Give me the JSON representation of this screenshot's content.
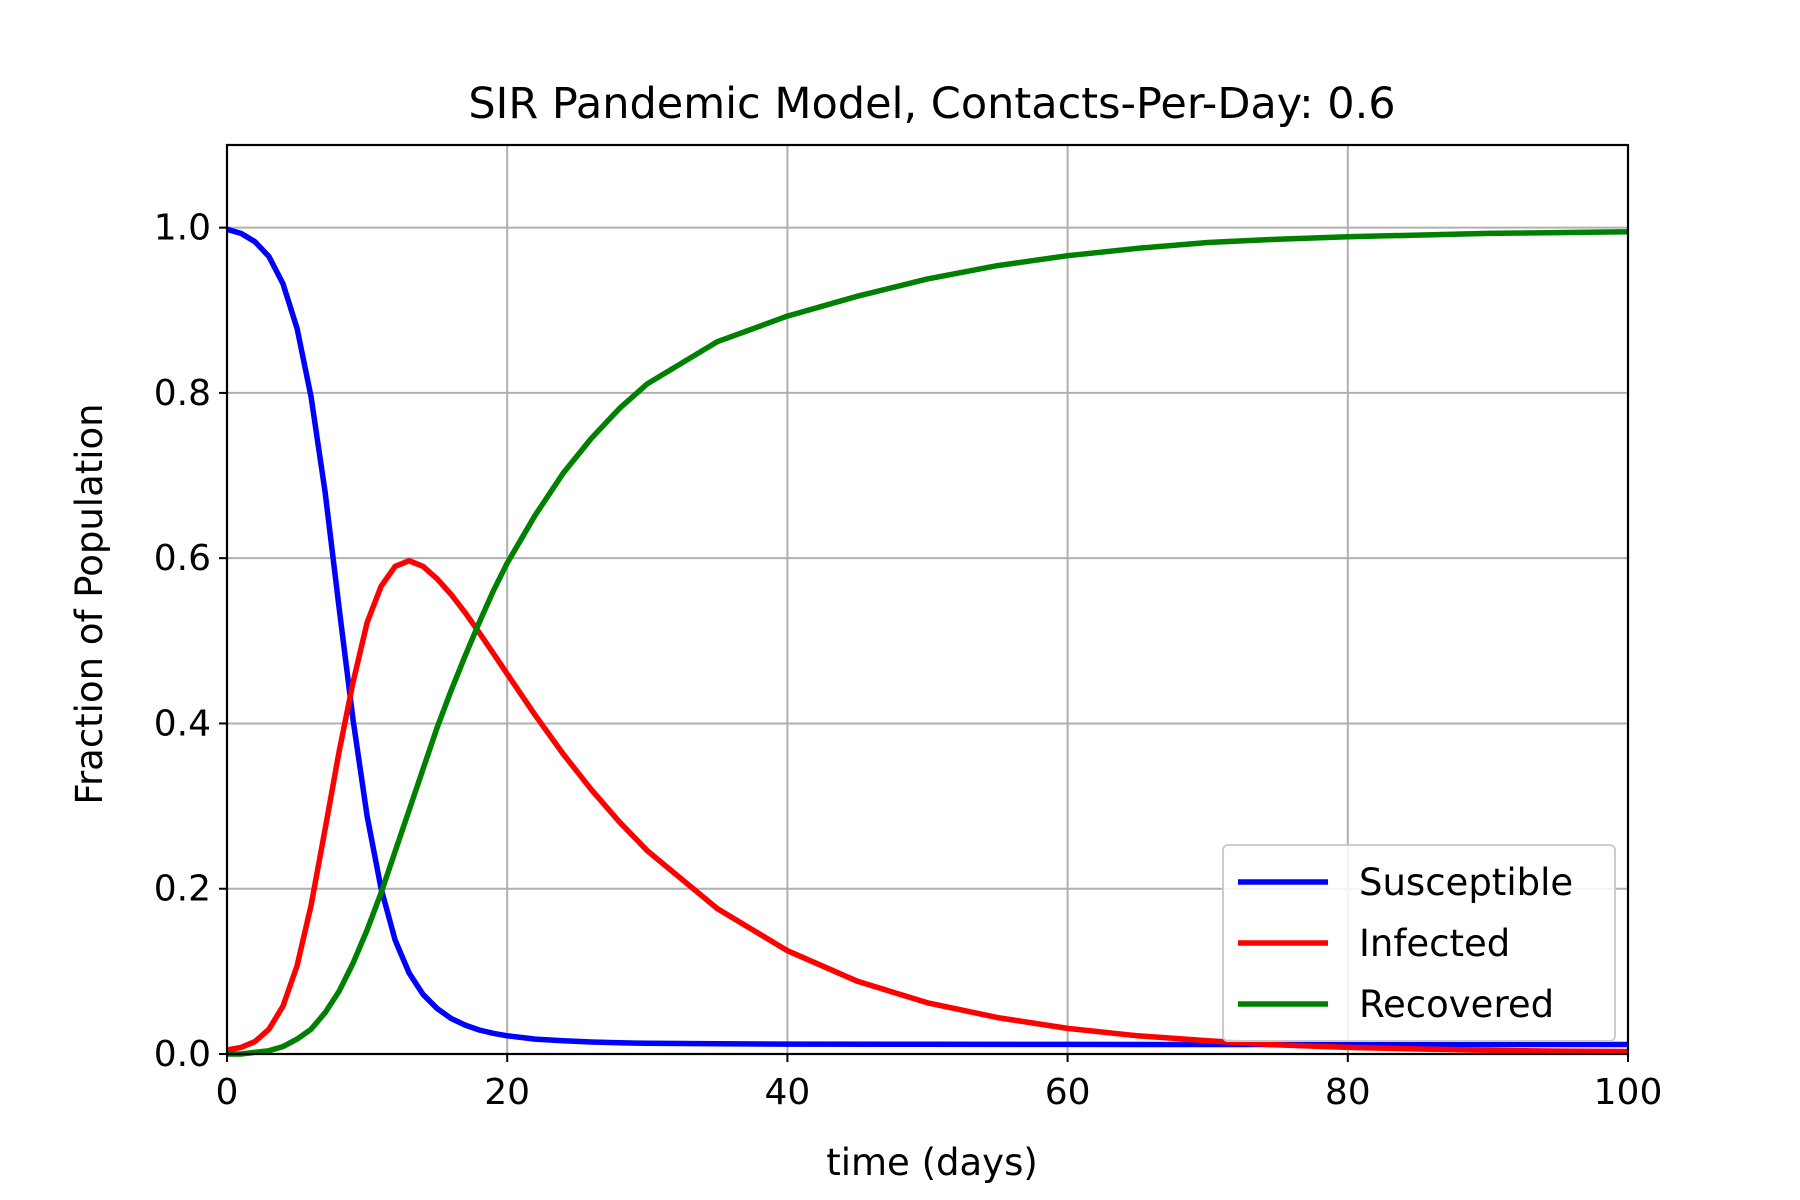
{
  "chart_data": {
    "type": "line",
    "title": "SIR Pandemic Model, Contacts-Per-Day: 0.6",
    "xlabel": "time (days)",
    "ylabel": "Fraction of Population",
    "xlim": [
      0,
      100
    ],
    "ylim": [
      0,
      1.1
    ],
    "xticks": [
      0,
      20,
      40,
      60,
      80,
      100
    ],
    "xtick_labels": [
      "0",
      "20",
      "40",
      "60",
      "80",
      "100"
    ],
    "yticks": [
      0.0,
      0.2,
      0.4,
      0.6,
      0.8,
      1.0
    ],
    "ytick_labels": [
      "0.0",
      "0.2",
      "0.4",
      "0.6",
      "0.8",
      "1.0"
    ],
    "grid": true,
    "legend_position": "lower-right",
    "series": [
      {
        "name": "Susceptible",
        "color": "#0000ff",
        "x": [
          0,
          1,
          2,
          3,
          4,
          5,
          6,
          7,
          8,
          9,
          10,
          11,
          12,
          13,
          14,
          15,
          16,
          17,
          18,
          19,
          20,
          22,
          24,
          26,
          28,
          30,
          35,
          40,
          50,
          60,
          70,
          80,
          90,
          100
        ],
        "values": [
          0.998,
          0.993,
          0.983,
          0.965,
          0.932,
          0.878,
          0.795,
          0.68,
          0.54,
          0.404,
          0.288,
          0.2,
          0.138,
          0.098,
          0.072,
          0.055,
          0.043,
          0.035,
          0.029,
          0.025,
          0.022,
          0.018,
          0.016,
          0.0145,
          0.0136,
          0.013,
          0.0123,
          0.012,
          0.0117,
          0.0116,
          0.0115,
          0.0115,
          0.0115,
          0.0115
        ]
      },
      {
        "name": "Infected",
        "color": "#ff0000",
        "x": [
          0,
          1,
          2,
          3,
          4,
          5,
          6,
          7,
          8,
          9,
          10,
          11,
          12,
          13,
          14,
          15,
          16,
          17,
          18,
          19,
          20,
          22,
          24,
          26,
          28,
          30,
          35,
          40,
          45,
          50,
          55,
          60,
          65,
          70,
          75,
          80,
          85,
          90,
          95,
          100
        ],
        "values": [
          0.005,
          0.008,
          0.015,
          0.03,
          0.058,
          0.107,
          0.18,
          0.272,
          0.366,
          0.45,
          0.522,
          0.566,
          0.59,
          0.597,
          0.59,
          0.575,
          0.556,
          0.534,
          0.51,
          0.485,
          0.46,
          0.41,
          0.363,
          0.32,
          0.281,
          0.246,
          0.176,
          0.125,
          0.088,
          0.062,
          0.044,
          0.031,
          0.022,
          0.016,
          0.011,
          0.008,
          0.006,
          0.0045,
          0.0035,
          0.003
        ]
      },
      {
        "name": "Recovered",
        "color": "#008000",
        "x": [
          0,
          1,
          2,
          3,
          4,
          5,
          6,
          7,
          8,
          9,
          10,
          11,
          12,
          13,
          14,
          15,
          16,
          17,
          18,
          19,
          20,
          22,
          24,
          26,
          28,
          30,
          35,
          40,
          45,
          50,
          55,
          60,
          65,
          70,
          75,
          80,
          85,
          90,
          95,
          100
        ],
        "values": [
          0.0,
          0.0,
          0.002,
          0.004,
          0.009,
          0.018,
          0.03,
          0.05,
          0.076,
          0.11,
          0.15,
          0.195,
          0.245,
          0.295,
          0.345,
          0.395,
          0.44,
          0.482,
          0.522,
          0.56,
          0.594,
          0.652,
          0.703,
          0.745,
          0.781,
          0.811,
          0.862,
          0.893,
          0.917,
          0.938,
          0.954,
          0.966,
          0.975,
          0.982,
          0.986,
          0.989,
          0.991,
          0.993,
          0.994,
          0.995
        ]
      }
    ]
  }
}
